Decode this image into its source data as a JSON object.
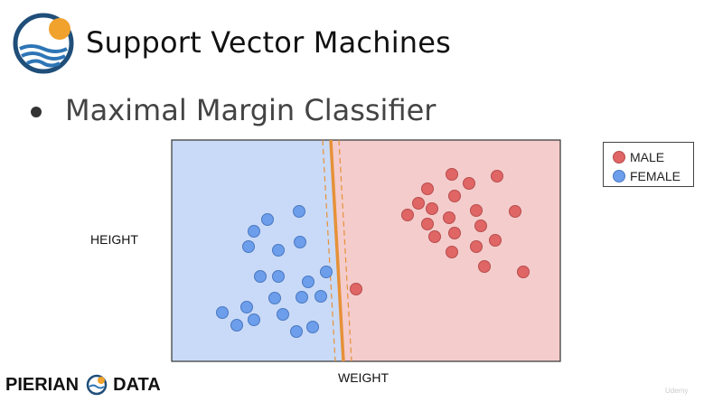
{
  "header": {
    "title": "Support Vector Machines",
    "subtitle": "Maximal Margin Classifier"
  },
  "footer": {
    "brand_left": "PIERIAN",
    "brand_right": "DATA",
    "watermark": "Udemy"
  },
  "colors": {
    "female_region": "#c9daf8",
    "male_region": "#f4cccc",
    "female_point": "#6d9eeb",
    "male_point": "#e06666",
    "margin_line": "#e69138",
    "accent_orange": "#f1a22d",
    "logo_blue": "#1f4e79"
  },
  "chart_data": {
    "type": "scatter",
    "xlabel": "WEIGHT",
    "ylabel": "HEIGHT",
    "legend_position": "outside-top-right",
    "series": [
      {
        "name": "MALE",
        "color": "#e06666",
        "points": [
          [
            500,
            193
          ],
          [
            550,
            195
          ],
          [
            473,
            209
          ],
          [
            519,
            203
          ],
          [
            463,
            225
          ],
          [
            503,
            217
          ],
          [
            451,
            238
          ],
          [
            478,
            231
          ],
          [
            570,
            234
          ],
          [
            527,
            233
          ],
          [
            497,
            241
          ],
          [
            473,
            248
          ],
          [
            532,
            250
          ],
          [
            503,
            258
          ],
          [
            481,
            262
          ],
          [
            548,
            266
          ],
          [
            527,
            273
          ],
          [
            500,
            279
          ],
          [
            536,
            295
          ],
          [
            579,
            301
          ],
          [
            394,
            320
          ]
        ]
      },
      {
        "name": "FEMALE",
        "color": "#6d9eeb",
        "points": [
          [
            331,
            234
          ],
          [
            296,
            243
          ],
          [
            281,
            256
          ],
          [
            332,
            268
          ],
          [
            275,
            273
          ],
          [
            308,
            277
          ],
          [
            361,
            301
          ],
          [
            288,
            306
          ],
          [
            308,
            306
          ],
          [
            341,
            312
          ],
          [
            304,
            330
          ],
          [
            334,
            329
          ],
          [
            355,
            328
          ],
          [
            273,
            340
          ],
          [
            246,
            346
          ],
          [
            313,
            348
          ],
          [
            281,
            354
          ],
          [
            262,
            360
          ],
          [
            346,
            362
          ],
          [
            328,
            367
          ]
        ]
      }
    ],
    "margin": {
      "separator": "solid",
      "boundaries": "dashed"
    },
    "grid": false
  }
}
